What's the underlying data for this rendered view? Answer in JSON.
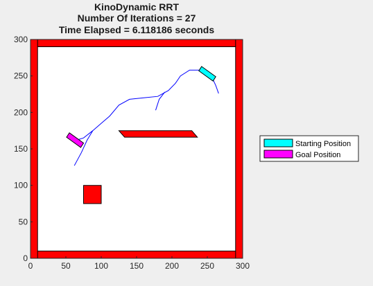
{
  "chart_data": {
    "type": "scatter",
    "title_lines": [
      "KinoDynamic RRT",
      "Number Of Iterations = 27",
      "Time Elapsed = 6.118186 seconds"
    ],
    "xlim": [
      0,
      300
    ],
    "ylim": [
      0,
      300
    ],
    "xticks": [
      0,
      50,
      100,
      150,
      200,
      250,
      300
    ],
    "yticks": [
      0,
      50,
      100,
      150,
      200,
      250,
      300
    ],
    "grid": false,
    "legend_position": "right",
    "legend": [
      {
        "label": "Starting Position",
        "color": "#00ffff"
      },
      {
        "label": "Goal Position",
        "color": "#ff00ff"
      }
    ],
    "obstacles": [
      {
        "name": "wall-bottom",
        "points": [
          [
            0,
            0
          ],
          [
            300,
            0
          ],
          [
            300,
            10
          ],
          [
            0,
            10
          ]
        ]
      },
      {
        "name": "wall-top",
        "points": [
          [
            0,
            290
          ],
          [
            300,
            290
          ],
          [
            300,
            300
          ],
          [
            0,
            300
          ]
        ]
      },
      {
        "name": "wall-left",
        "points": [
          [
            0,
            0
          ],
          [
            10,
            0
          ],
          [
            10,
            300
          ],
          [
            0,
            300
          ]
        ]
      },
      {
        "name": "wall-right",
        "points": [
          [
            290,
            0
          ],
          [
            300,
            0
          ],
          [
            300,
            300
          ],
          [
            290,
            300
          ]
        ]
      },
      {
        "name": "square-block",
        "points": [
          [
            75,
            75
          ],
          [
            100,
            75
          ],
          [
            100,
            100
          ],
          [
            75,
            100
          ]
        ]
      },
      {
        "name": "slanted-bar",
        "points": [
          [
            125,
            175
          ],
          [
            228,
            175
          ],
          [
            236,
            166
          ],
          [
            133,
            166
          ]
        ]
      }
    ],
    "start_vehicle": {
      "color": "#00ffff",
      "points": [
        [
          242,
          263
        ],
        [
          262,
          249
        ],
        [
          258,
          243
        ],
        [
          238,
          257
        ]
      ]
    },
    "goal_vehicle": {
      "color": "#ff00ff",
      "points": [
        [
          55,
          172
        ],
        [
          75,
          158
        ],
        [
          71,
          152
        ],
        [
          51,
          166
        ]
      ]
    },
    "tree_color": "#0000ff",
    "tree_edges": [
      [
        [
          258,
          245
        ],
        [
          250,
          253
        ],
        [
          240,
          258
        ],
        [
          225,
          258
        ],
        [
          212,
          250
        ],
        [
          205,
          240
        ],
        [
          195,
          230
        ],
        [
          180,
          222
        ],
        [
          160,
          220
        ],
        [
          140,
          218
        ],
        [
          125,
          210
        ],
        [
          112,
          195
        ],
        [
          100,
          185
        ],
        [
          88,
          175
        ],
        [
          75,
          165
        ],
        [
          65,
          162
        ]
      ],
      [
        [
          258,
          245
        ],
        [
          262,
          237
        ],
        [
          266,
          226
        ]
      ],
      [
        [
          190,
          228
        ],
        [
          182,
          218
        ],
        [
          177,
          203
        ]
      ],
      [
        [
          88,
          175
        ],
        [
          80,
          162
        ],
        [
          72,
          145
        ],
        [
          62,
          127
        ]
      ]
    ]
  }
}
